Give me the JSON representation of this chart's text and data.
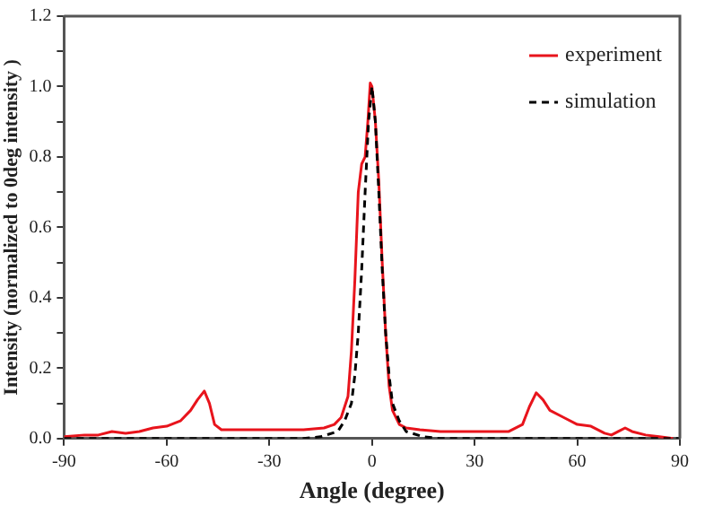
{
  "chart_data": {
    "type": "line",
    "xlabel": "Angle (degree)",
    "ylabel": "Intensity (normalized to 0deg intensity )",
    "xlim": [
      -90,
      90
    ],
    "xticks": [
      -90,
      -60,
      -30,
      0,
      30,
      60,
      90
    ],
    "ylim": [
      0,
      1.2
    ],
    "yticks": [
      {
        "value": 0,
        "label": "0.0"
      },
      {
        "value": 0.1,
        "label": null
      },
      0.2,
      {
        "value": 0.3,
        "label": null
      },
      0.4,
      {
        "value": 0.5,
        "label": null
      },
      0.6,
      {
        "value": 0.7,
        "label": null
      },
      0.8,
      {
        "value": 0.9,
        "label": null
      },
      {
        "value": 1,
        "label": "1.0"
      },
      {
        "value": 1.1,
        "label": null
      },
      1.2
    ],
    "grid": false,
    "legend": "top right",
    "marker": "none",
    "series": [
      {
        "name": "experiment",
        "color": "#e8141c",
        "line_style": "solid",
        "x": [
          -90,
          -84,
          -80,
          -76,
          -72,
          -68,
          -64,
          -60,
          -56,
          -53,
          -51,
          -49,
          -47.5,
          -46,
          -44,
          -40,
          -30,
          -20,
          -14,
          -11,
          -9,
          -7,
          -6,
          -5,
          -4,
          -3,
          -2,
          -1.2,
          -0.5,
          0,
          0.5,
          1,
          2,
          3,
          4,
          5,
          6,
          8,
          10,
          14,
          20,
          30,
          40,
          44,
          46,
          48,
          50,
          52,
          56,
          60,
          64,
          68,
          70,
          72,
          74,
          76,
          80,
          84,
          88
        ],
        "values": [
          0.005,
          0.01,
          0.01,
          0.02,
          0.015,
          0.02,
          0.03,
          0.035,
          0.05,
          0.08,
          0.11,
          0.135,
          0.1,
          0.04,
          0.025,
          0.025,
          0.025,
          0.025,
          0.03,
          0.04,
          0.06,
          0.12,
          0.25,
          0.45,
          0.7,
          0.78,
          0.8,
          0.9,
          1.01,
          1.0,
          0.95,
          0.9,
          0.73,
          0.5,
          0.3,
          0.15,
          0.08,
          0.04,
          0.03,
          0.025,
          0.02,
          0.02,
          0.02,
          0.04,
          0.09,
          0.13,
          0.11,
          0.08,
          0.06,
          0.04,
          0.035,
          0.015,
          0.01,
          0.02,
          0.03,
          0.02,
          0.01,
          0.005,
          0
        ]
      },
      {
        "name": "simulation",
        "color": "#000000",
        "line_style": "dashed",
        "x": [
          -90,
          -20,
          -15,
          -10,
          -8,
          -6,
          -5,
          -4,
          -3,
          -2,
          -1,
          0,
          1,
          2,
          3,
          4,
          5,
          6,
          8,
          10,
          15,
          20,
          90
        ],
        "values": [
          0,
          0,
          0.005,
          0.02,
          0.05,
          0.1,
          0.18,
          0.3,
          0.48,
          0.7,
          0.9,
          1.0,
          0.9,
          0.7,
          0.48,
          0.3,
          0.18,
          0.1,
          0.05,
          0.02,
          0.005,
          0,
          0
        ]
      }
    ]
  }
}
